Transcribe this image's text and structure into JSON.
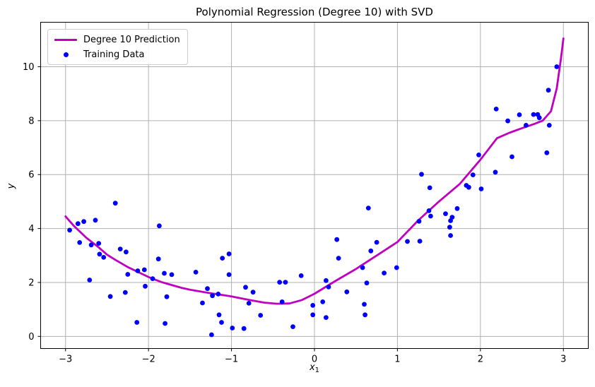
{
  "figure": {
    "title": "Polynomial Regression (Degree 10) with SVD",
    "xlabel_base": "x",
    "xlabel_sub": "1",
    "ylabel": "y"
  },
  "legend": {
    "items": [
      {
        "label": "Degree 10 Prediction",
        "marker": "line-icon",
        "color": "#bf00bf"
      },
      {
        "label": "Training Data",
        "marker": "dot-icon",
        "color": "#0000ff"
      }
    ]
  },
  "chart_data": {
    "type": "scatter",
    "title": "Polynomial Regression (Degree 10) with SVD",
    "xlabel": "x_1",
    "ylabel": "y",
    "xlim": [
      -3.3,
      3.3
    ],
    "ylim": [
      -0.45,
      11.65
    ],
    "xticks": [
      -3,
      -2,
      -1,
      0,
      1,
      2,
      3
    ],
    "yticks": [
      0,
      2,
      4,
      6,
      8,
      10
    ],
    "grid": true,
    "legend_position": "upper left",
    "colors": {
      "curve": "#bf00bf",
      "points": "#0000ff",
      "grid": "#b0b0b0",
      "spine": "#000000"
    },
    "series": [
      {
        "name": "Degree 10 Prediction",
        "type": "line",
        "color": "#bf00bf",
        "points": [
          [
            -3.0,
            4.45
          ],
          [
            -2.9,
            4.1
          ],
          [
            -2.75,
            3.66
          ],
          [
            -2.6,
            3.3
          ],
          [
            -2.5,
            3.03
          ],
          [
            -2.4,
            2.84
          ],
          [
            -2.25,
            2.57
          ],
          [
            -2.1,
            2.35
          ],
          [
            -2.0,
            2.2
          ],
          [
            -1.85,
            2.02
          ],
          [
            -1.75,
            1.93
          ],
          [
            -1.6,
            1.8
          ],
          [
            -1.5,
            1.73
          ],
          [
            -1.35,
            1.65
          ],
          [
            -1.25,
            1.6
          ],
          [
            -1.1,
            1.53
          ],
          [
            -1.0,
            1.48
          ],
          [
            -0.85,
            1.39
          ],
          [
            -0.75,
            1.33
          ],
          [
            -0.6,
            1.25
          ],
          [
            -0.45,
            1.21
          ],
          [
            -0.3,
            1.22
          ],
          [
            -0.15,
            1.35
          ],
          [
            0.0,
            1.58
          ],
          [
            0.25,
            2.05
          ],
          [
            0.5,
            2.5
          ],
          [
            0.75,
            3.0
          ],
          [
            1.0,
            3.5
          ],
          [
            1.25,
            4.3
          ],
          [
            1.5,
            5.0
          ],
          [
            1.75,
            5.65
          ],
          [
            2.0,
            6.55
          ],
          [
            2.2,
            7.35
          ],
          [
            2.35,
            7.55
          ],
          [
            2.5,
            7.72
          ],
          [
            2.65,
            7.88
          ],
          [
            2.75,
            8.0
          ],
          [
            2.85,
            8.35
          ],
          [
            2.92,
            9.2
          ],
          [
            2.97,
            10.3
          ],
          [
            3.0,
            11.05
          ]
        ]
      },
      {
        "name": "Training Data",
        "type": "scatter",
        "color": "#0000ff",
        "points": [
          [
            -2.95,
            3.94
          ],
          [
            -2.85,
            4.18
          ],
          [
            -2.83,
            3.48
          ],
          [
            -2.78,
            4.26
          ],
          [
            -2.71,
            2.09
          ],
          [
            -2.69,
            3.39
          ],
          [
            -2.64,
            4.31
          ],
          [
            -2.6,
            3.45
          ],
          [
            -2.59,
            3.05
          ],
          [
            -2.54,
            2.93
          ],
          [
            -2.46,
            1.48
          ],
          [
            -2.4,
            4.94
          ],
          [
            -2.34,
            3.24
          ],
          [
            -2.28,
            1.63
          ],
          [
            -2.27,
            3.13
          ],
          [
            -2.25,
            2.3
          ],
          [
            -2.14,
            0.52
          ],
          [
            -2.13,
            2.43
          ],
          [
            -2.05,
            2.47
          ],
          [
            -2.04,
            1.86
          ],
          [
            -1.95,
            2.14
          ],
          [
            -1.88,
            2.87
          ],
          [
            -1.87,
            4.1
          ],
          [
            -1.81,
            2.34
          ],
          [
            -1.8,
            0.48
          ],
          [
            -1.78,
            1.47
          ],
          [
            -1.72,
            2.29
          ],
          [
            -1.43,
            2.38
          ],
          [
            -1.35,
            1.24
          ],
          [
            -1.29,
            1.77
          ],
          [
            -1.24,
            0.06
          ],
          [
            -1.23,
            1.51
          ],
          [
            -1.16,
            1.57
          ],
          [
            -1.15,
            0.8
          ],
          [
            -1.12,
            0.52
          ],
          [
            -1.11,
            2.9
          ],
          [
            -1.03,
            3.06
          ],
          [
            -1.03,
            2.29
          ],
          [
            -0.99,
            0.31
          ],
          [
            -0.85,
            0.29
          ],
          [
            -0.83,
            1.82
          ],
          [
            -0.79,
            1.23
          ],
          [
            -0.74,
            1.64
          ],
          [
            -0.65,
            0.78
          ],
          [
            -0.42,
            2.01
          ],
          [
            -0.39,
            1.28
          ],
          [
            -0.35,
            2.01
          ],
          [
            -0.26,
            0.36
          ],
          [
            -0.16,
            2.25
          ],
          [
            -0.02,
            1.15
          ],
          [
            -0.02,
            0.8
          ],
          [
            0.1,
            1.28
          ],
          [
            0.14,
            2.07
          ],
          [
            0.14,
            0.7
          ],
          [
            0.17,
            1.83
          ],
          [
            0.27,
            3.59
          ],
          [
            0.29,
            2.9
          ],
          [
            0.39,
            1.65
          ],
          [
            0.58,
            2.55
          ],
          [
            0.6,
            1.19
          ],
          [
            0.61,
            0.8
          ],
          [
            0.63,
            1.98
          ],
          [
            0.65,
            4.76
          ],
          [
            0.68,
            3.17
          ],
          [
            0.75,
            3.49
          ],
          [
            0.84,
            2.35
          ],
          [
            0.99,
            2.55
          ],
          [
            1.12,
            3.52
          ],
          [
            1.26,
            4.27
          ],
          [
            1.27,
            3.53
          ],
          [
            1.29,
            6.01
          ],
          [
            1.38,
            4.66
          ],
          [
            1.39,
            5.51
          ],
          [
            1.4,
            4.46
          ],
          [
            1.58,
            4.55
          ],
          [
            1.63,
            4.05
          ],
          [
            1.64,
            4.29
          ],
          [
            1.64,
            3.74
          ],
          [
            1.66,
            4.42
          ],
          [
            1.72,
            4.74
          ],
          [
            1.83,
            5.6
          ],
          [
            1.86,
            5.53
          ],
          [
            1.91,
            5.99
          ],
          [
            1.98,
            6.73
          ],
          [
            2.01,
            5.47
          ],
          [
            2.18,
            6.09
          ],
          [
            2.19,
            8.43
          ],
          [
            2.33,
            7.99
          ],
          [
            2.38,
            6.66
          ],
          [
            2.47,
            8.22
          ],
          [
            2.55,
            7.83
          ],
          [
            2.64,
            8.23
          ],
          [
            2.69,
            8.23
          ],
          [
            2.71,
            8.11
          ],
          [
            2.8,
            6.81
          ],
          [
            2.82,
            9.13
          ],
          [
            2.83,
            7.83
          ],
          [
            2.92,
            10.0
          ]
        ]
      }
    ]
  }
}
